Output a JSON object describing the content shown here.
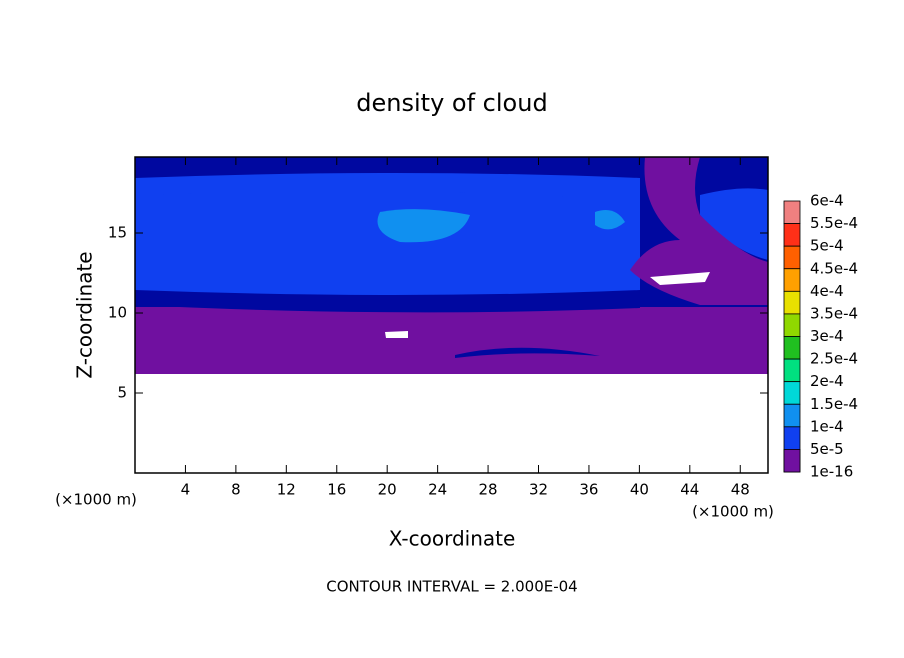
{
  "chart_data": {
    "type": "contour",
    "title": "density of cloud",
    "x_label": "X-coordinate",
    "y_label": "Z-coordinate",
    "x_unit": "(×1000 m)",
    "y_unit": "(×1000 m)",
    "footer": "CONTOUR INTERVAL = 2.000E-04",
    "xlim": [
      0,
      50.2
    ],
    "xticks": [
      4,
      8,
      12,
      16,
      20,
      24,
      28,
      32,
      36,
      40,
      44,
      48
    ],
    "ylim": [
      0,
      19.75
    ],
    "yticks": [
      5,
      10,
      15
    ],
    "colorbar": {
      "levels": [
        {
          "value": 0.0006,
          "label": "6e-4"
        },
        {
          "value": 0.00055,
          "label": "5.5e-4"
        },
        {
          "value": 0.0005,
          "label": "5e-4"
        },
        {
          "value": 0.00045,
          "label": "4.5e-4"
        },
        {
          "value": 0.0004,
          "label": "4e-4"
        },
        {
          "value": 0.00035,
          "label": "3.5e-4"
        },
        {
          "value": 0.0003,
          "label": "3e-4"
        },
        {
          "value": 0.00025,
          "label": "2.5e-4"
        },
        {
          "value": 0.0002,
          "label": "2e-4"
        },
        {
          "value": 0.00015,
          "label": "1.5e-4"
        },
        {
          "value": 0.0001,
          "label": "1e-4"
        },
        {
          "value": 5e-05,
          "label": "5e-5"
        },
        {
          "value": 1e-16,
          "label": "1e-16"
        }
      ],
      "colors": [
        "#f08080",
        "#ff3018",
        "#ff6000",
        "#ffa000",
        "#e8e000",
        "#90d800",
        "#20c020",
        "#00e080",
        "#00d8d8",
        "#1090f0",
        "#1040f0",
        "#0008a0"
      ],
      "bottom_color": "#7010a0"
    }
  }
}
